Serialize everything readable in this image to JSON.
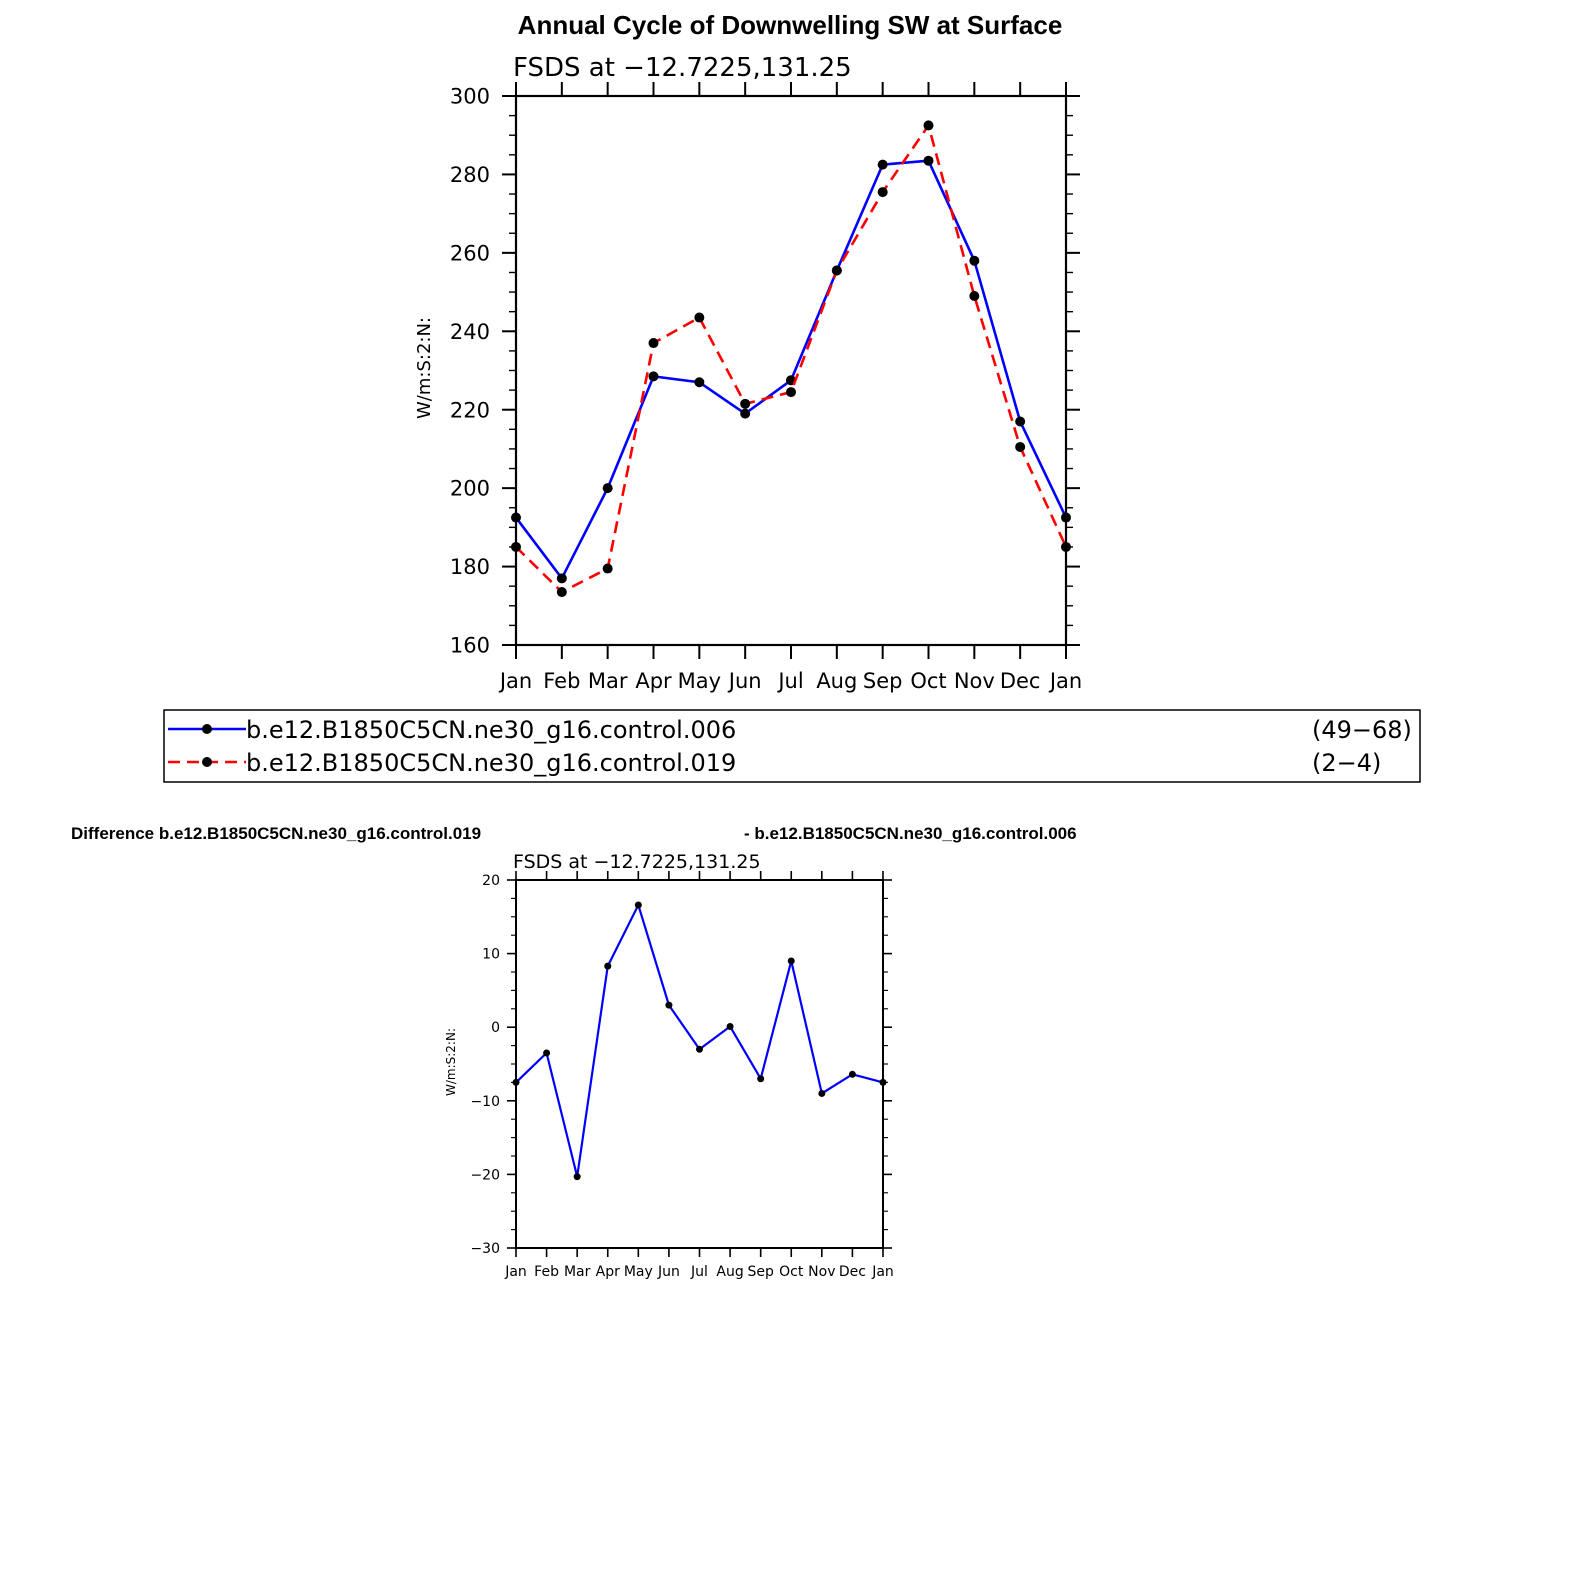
{
  "main_title": "Annual Cycle of Downwelling SW at Surface",
  "diff_title_left": "Difference b.e12.B1850C5CN.ne30_g16.control.019",
  "diff_title_right": "- b.e12.B1850C5CN.ne30_g16.control.006",
  "legend": [
    {
      "name": "b.e12.B1850C5CN.ne30_g16.control.006",
      "years": "(49−68)",
      "color": "#0000ff",
      "dash": "solid"
    },
    {
      "name": "b.e12.B1850C5CN.ne30_g16.control.019",
      "years": "(2−4)",
      "color": "#ff0000",
      "dash": "dashed"
    }
  ],
  "chart_data": [
    {
      "type": "line",
      "subtitle": "FSDS at −12.7225,131.25",
      "ylabel": "W/m:S:2:N:",
      "categories": [
        "Jan",
        "Feb",
        "Mar",
        "Apr",
        "May",
        "Jun",
        "Jul",
        "Aug",
        "Sep",
        "Oct",
        "Nov",
        "Dec",
        "Jan"
      ],
      "ylim": [
        160,
        300
      ],
      "yticks": [
        160,
        180,
        200,
        220,
        240,
        260,
        280,
        300
      ],
      "grid": false,
      "series": [
        {
          "name": "b.e12.B1850C5CN.ne30_g16.control.006",
          "color": "#0000ff",
          "dash": "solid",
          "values": [
            192.5,
            177,
            200,
            228.5,
            227,
            219,
            227.5,
            255.5,
            282.5,
            283.5,
            258,
            217,
            192.5
          ]
        },
        {
          "name": "b.e12.B1850C5CN.ne30_g16.control.019",
          "color": "#ff0000",
          "dash": "dashed",
          "values": [
            185,
            173.5,
            179.5,
            237,
            243.5,
            221.5,
            224.5,
            255.5,
            275.5,
            292.5,
            249,
            210.5,
            185
          ]
        }
      ]
    },
    {
      "type": "line",
      "subtitle": "FSDS at −12.7225,131.25",
      "ylabel": "W/m:S:2:N:",
      "categories": [
        "Jan",
        "Feb",
        "Mar",
        "Apr",
        "May",
        "Jun",
        "Jul",
        "Aug",
        "Sep",
        "Oct",
        "Nov",
        "Dec",
        "Jan"
      ],
      "ylim": [
        -30,
        20
      ],
      "yticks": [
        -30,
        -20,
        -10,
        0,
        10,
        20
      ],
      "grid": false,
      "series": [
        {
          "color": "#0000ff",
          "dash": "solid",
          "values": [
            -7.5,
            -3.5,
            -20.3,
            8.3,
            16.6,
            3,
            -3,
            0.1,
            -7,
            9,
            -9,
            -6.4,
            -7.5
          ]
        }
      ]
    }
  ]
}
